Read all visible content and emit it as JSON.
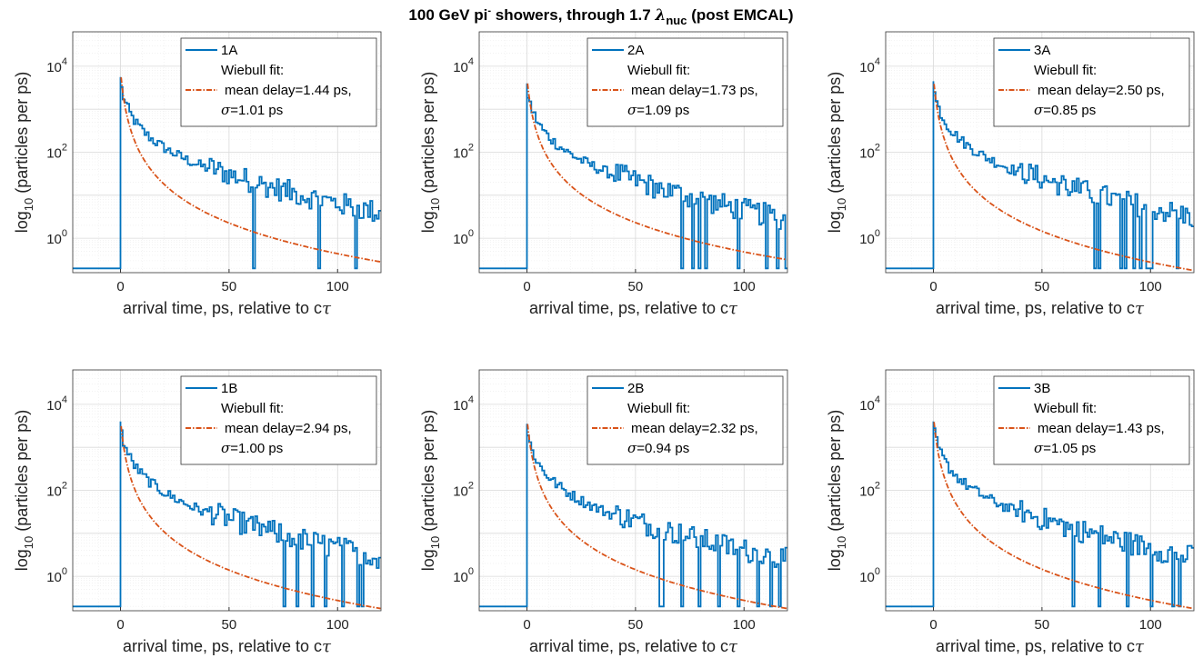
{
  "figure": {
    "title": "100 GeV pi",
    "title_sup": "-",
    "title_rest": " showers, through 1.7 ",
    "title_lambda": "λ",
    "title_sub": "nuc",
    "title_tail": " (post EMCAL)"
  },
  "chart_data": [
    {
      "type": "line",
      "panel": "1A",
      "scale_y": "log",
      "xlabel_pre": "arrival time, ps, relative to c",
      "xlabel_sym": "τ",
      "ylabel_pre": "log",
      "ylabel_sub": "10",
      "ylabel_post": " (particles per ps)",
      "xlim": [
        -22,
        120
      ],
      "ylim_exp": [
        -0.8,
        4.8
      ],
      "xticks": [
        0,
        50,
        100
      ],
      "yticks_exp": [
        0,
        2,
        4
      ],
      "grid": "on",
      "legend_position": "top-right",
      "legend": [
        "1A",
        "Wiebull fit:",
        "mean delay=1.44 ps,",
        "=1.01 ps"
      ],
      "legend_sigma": "σ",
      "peak_log10": 3.75,
      "fit_peak_log10": 3.9,
      "fit_end_log10": -0.55,
      "colors": {
        "data": "#0072BD",
        "fit": "#D95319"
      }
    },
    {
      "type": "line",
      "panel": "2A",
      "scale_y": "log",
      "xlabel_pre": "arrival time, ps, relative to c",
      "xlabel_sym": "τ",
      "ylabel_pre": "log",
      "ylabel_sub": "10",
      "ylabel_post": " (particles per ps)",
      "xlim": [
        -22,
        120
      ],
      "ylim_exp": [
        -0.8,
        4.8
      ],
      "xticks": [
        0,
        50,
        100
      ],
      "yticks_exp": [
        0,
        2,
        4
      ],
      "grid": "on",
      "legend_position": "top-right",
      "legend": [
        "2A",
        "Wiebull fit:",
        "mean delay=1.73 ps,",
        "=1.09 ps"
      ],
      "legend_sigma": "σ",
      "peak_log10": 3.6,
      "fit_peak_log10": 3.75,
      "fit_end_log10": -0.5,
      "colors": {
        "data": "#0072BD",
        "fit": "#D95319"
      }
    },
    {
      "type": "line",
      "panel": "3A",
      "scale_y": "log",
      "xlabel_pre": "arrival time, ps, relative to c",
      "xlabel_sym": "τ",
      "ylabel_pre": "log",
      "ylabel_sub": "10",
      "ylabel_post": " (particles per ps)",
      "xlim": [
        -22,
        120
      ],
      "ylim_exp": [
        -0.8,
        4.8
      ],
      "xticks": [
        0,
        50,
        100
      ],
      "yticks_exp": [
        0,
        2,
        4
      ],
      "grid": "on",
      "legend_position": "top-right",
      "legend": [
        "3A",
        "Wiebull fit:",
        "mean delay=2.50 ps,",
        "=0.85 ps"
      ],
      "legend_sigma": "σ",
      "peak_log10": 3.65,
      "fit_peak_log10": 3.75,
      "fit_end_log10": -0.75,
      "colors": {
        "data": "#0072BD",
        "fit": "#D95319"
      }
    },
    {
      "type": "line",
      "panel": "1B",
      "scale_y": "log",
      "xlabel_pre": "arrival time, ps, relative to c",
      "xlabel_sym": "τ",
      "ylabel_pre": "log",
      "ylabel_sub": "10",
      "ylabel_post": " (particles per ps)",
      "xlim": [
        -22,
        120
      ],
      "ylim_exp": [
        -0.8,
        4.8
      ],
      "xticks": [
        0,
        50,
        100
      ],
      "yticks_exp": [
        0,
        2,
        4
      ],
      "grid": "on",
      "legend_position": "top-right",
      "legend": [
        "1B",
        "Wiebull fit:",
        "mean delay=2.94 ps,",
        "=1.00 ps"
      ],
      "legend_sigma": "σ",
      "peak_log10": 3.6,
      "fit_peak_log10": 3.65,
      "fit_end_log10": -0.75,
      "colors": {
        "data": "#0072BD",
        "fit": "#D95319"
      }
    },
    {
      "type": "line",
      "panel": "2B",
      "scale_y": "log",
      "xlabel_pre": "arrival time, ps, relative to c",
      "xlabel_sym": "τ",
      "ylabel_pre": "log",
      "ylabel_sub": "10",
      "ylabel_post": " (particles per ps)",
      "xlim": [
        -22,
        120
      ],
      "ylim_exp": [
        -0.8,
        4.8
      ],
      "xticks": [
        0,
        50,
        100
      ],
      "yticks_exp": [
        0,
        2,
        4
      ],
      "grid": "on",
      "legend_position": "top-right",
      "legend": [
        "2B",
        "Wiebull fit:",
        "mean delay=2.32 ps,",
        "=0.94 ps"
      ],
      "legend_sigma": "σ",
      "peak_log10": 3.55,
      "fit_peak_log10": 3.7,
      "fit_end_log10": -0.75,
      "colors": {
        "data": "#0072BD",
        "fit": "#D95319"
      }
    },
    {
      "type": "line",
      "panel": "3B",
      "scale_y": "log",
      "xlabel_pre": "arrival time, ps, relative to c",
      "xlabel_sym": "τ",
      "ylabel_pre": "log",
      "ylabel_sub": "10",
      "ylabel_post": " (particles per ps)",
      "xlim": [
        -22,
        120
      ],
      "ylim_exp": [
        -0.8,
        4.8
      ],
      "xticks": [
        0,
        50,
        100
      ],
      "yticks_exp": [
        0,
        2,
        4
      ],
      "grid": "on",
      "legend_position": "top-right",
      "legend": [
        "3B",
        "Wiebull fit:",
        "mean delay=1.43 ps,",
        "=1.05 ps"
      ],
      "legend_sigma": "σ",
      "peak_log10": 3.6,
      "fit_peak_log10": 3.75,
      "fit_end_log10": -0.75,
      "colors": {
        "data": "#0072BD",
        "fit": "#D95319"
      }
    }
  ]
}
